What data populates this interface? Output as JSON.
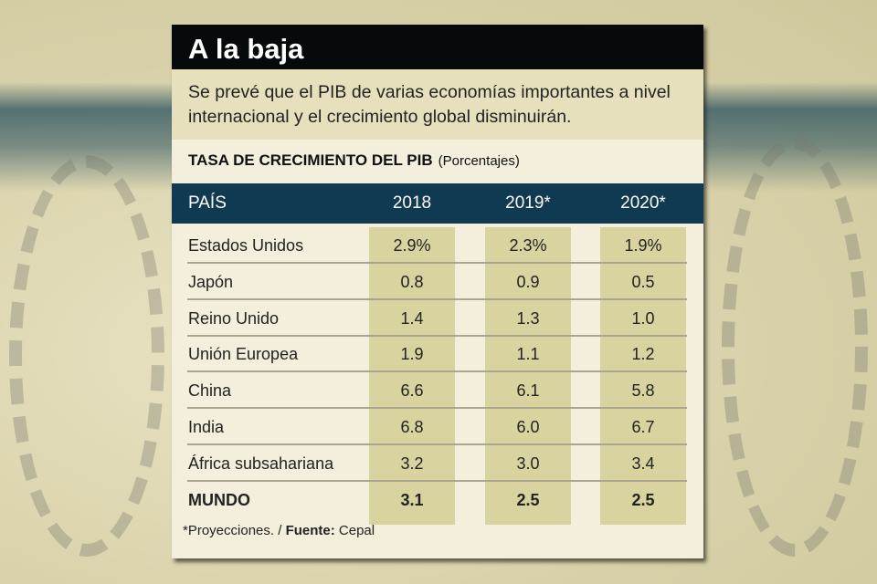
{
  "title": "A la baja",
  "description": "Se prevé que el PIB de varias economías importantes a nivel internacional y el crecimiento global disminuirán.",
  "chart_data": {
    "type": "table",
    "title": "TASA DE CRECIMIENTO DEL PIB",
    "unit": "(Porcentajes)",
    "columns": [
      "PAÍS",
      "2018",
      "2019*",
      "2020*"
    ],
    "rows": [
      {
        "country": "Estados Unidos",
        "values": [
          "2.9%",
          "2.3%",
          "1.9%"
        ]
      },
      {
        "country": "Japón",
        "values": [
          "0.8",
          "0.9",
          "0.5"
        ]
      },
      {
        "country": "Reino Unido",
        "values": [
          "1.4",
          "1.3",
          "1.0"
        ]
      },
      {
        "country": "Unión Europea",
        "values": [
          "1.9",
          "1.1",
          "1.2"
        ]
      },
      {
        "country": "China",
        "values": [
          "6.6",
          "6.1",
          "5.8"
        ]
      },
      {
        "country": "India",
        "values": [
          "6.8",
          "6.0",
          "6.7"
        ]
      },
      {
        "country": "África subsahariana",
        "values": [
          "3.2",
          "3.0",
          "3.4"
        ]
      },
      {
        "country": "MUNDO",
        "values": [
          "3.1",
          "2.5",
          "2.5"
        ]
      }
    ]
  },
  "footnote": {
    "note": "*Proyecciones. /",
    "source_label": "Fuente:",
    "source": "Cepal"
  },
  "colors": {
    "title_bg": "#060a0a",
    "header_bg": "#0f3a52",
    "band": "#d9d3a0",
    "card": "#f3efdc",
    "desc_bg": "#e6e1bc"
  }
}
